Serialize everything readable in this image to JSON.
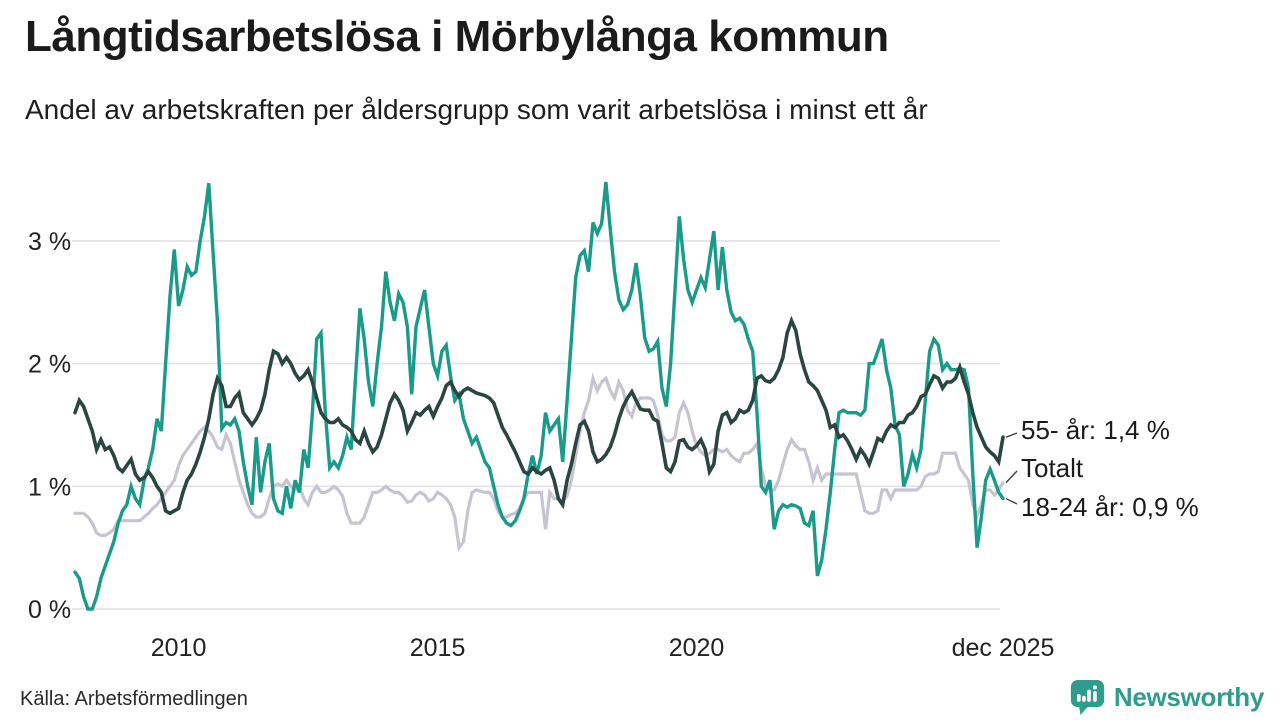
{
  "page": {
    "title": "Långtidsarbetslösa i Mörbylånga kommun",
    "subtitle": "Andel av arbetskraften per åldersgrupp som varit arbetslösa i minst ett år",
    "source": "Källa: Arbetsförmedlingen",
    "brand": "Newsworthy"
  },
  "colors": {
    "teal": "#1a9b8a",
    "dark_green": "#2b4640",
    "gray": "#c7c4d1",
    "grid": "#e2e1e7",
    "text": "#1b1b1b",
    "leader": "#3a3a3a",
    "brand_teal": "#2f9c8d"
  },
  "chart_data": {
    "type": "line",
    "title": "Långtidsarbetslösa i Mörbylånga kommun",
    "subtitle": "Andel av arbetskraften per åldersgrupp som varit arbetslösa i minst ett år",
    "unit": "% av arbetskraften",
    "x_start_year": 2008.0,
    "x_end_year": 2025.917,
    "points_per_year": 12,
    "ylim": [
      0,
      3.6
    ],
    "grid": true,
    "y_ticks": [
      {
        "label": "0 %",
        "value": 0
      },
      {
        "label": "1 %",
        "value": 1
      },
      {
        "label": "2 %",
        "value": 2
      },
      {
        "label": "3 %",
        "value": 3
      }
    ],
    "x_ticks": [
      {
        "label": "2010",
        "year": 2010.0
      },
      {
        "label": "2015",
        "year": 2015.0
      },
      {
        "label": "2020",
        "year": 2020.0
      },
      {
        "label": "dec 2025",
        "year": 2025.917
      }
    ],
    "legend_position": "right-of-line-ends",
    "series": [
      {
        "name": "Totalt",
        "end_label": "Totalt",
        "color": "#c7c4d1",
        "stroke_width": 3.2,
        "values": [
          0.78,
          0.78,
          0.78,
          0.75,
          0.7,
          0.62,
          0.6,
          0.6,
          0.62,
          0.65,
          0.72,
          0.72,
          0.72,
          0.72,
          0.72,
          0.72,
          0.75,
          0.78,
          0.82,
          0.85,
          0.9,
          0.95,
          1.0,
          1.05,
          1.17,
          1.25,
          1.3,
          1.35,
          1.4,
          1.45,
          1.48,
          1.45,
          1.4,
          1.32,
          1.3,
          1.42,
          1.35,
          1.2,
          1.05,
          0.95,
          0.85,
          0.78,
          0.75,
          0.75,
          0.78,
          0.9,
          1.0,
          1.02,
          1.0,
          1.05,
          1.0,
          0.97,
          1.0,
          0.9,
          0.85,
          0.95,
          1.0,
          0.95,
          0.95,
          0.97,
          1.0,
          0.97,
          0.92,
          0.78,
          0.7,
          0.7,
          0.7,
          0.75,
          0.85,
          0.95,
          0.95,
          0.97,
          1.0,
          0.97,
          0.95,
          0.95,
          0.92,
          0.87,
          0.88,
          0.93,
          0.95,
          0.93,
          0.88,
          0.9,
          0.95,
          0.93,
          0.9,
          0.85,
          0.75,
          0.5,
          0.55,
          0.8,
          0.95,
          0.97,
          0.96,
          0.95,
          0.95,
          0.9,
          0.8,
          0.75,
          0.75,
          0.77,
          0.78,
          0.82,
          0.9,
          0.95,
          0.95,
          0.95,
          0.95,
          0.65,
          0.95,
          0.9,
          0.9,
          0.88,
          0.92,
          1.05,
          1.25,
          1.45,
          1.6,
          1.7,
          1.88,
          1.78,
          1.85,
          1.88,
          1.78,
          1.72,
          1.85,
          1.78,
          1.62,
          1.57,
          1.68,
          1.72,
          1.72,
          1.72,
          1.7,
          1.58,
          1.42,
          1.37,
          1.37,
          1.4,
          1.6,
          1.68,
          1.6,
          1.45,
          1.33,
          1.28,
          1.25,
          1.27,
          1.3,
          1.3,
          1.28,
          1.3,
          1.25,
          1.22,
          1.2,
          1.27,
          1.27,
          1.3,
          1.35,
          1.15,
          1.0,
          0.97,
          0.97,
          1.05,
          1.18,
          1.3,
          1.38,
          1.33,
          1.3,
          1.3,
          1.2,
          1.05,
          1.15,
          1.05,
          1.1,
          1.1,
          1.1,
          1.1,
          1.1,
          1.1,
          1.1,
          1.1,
          0.95,
          0.8,
          0.78,
          0.78,
          0.8,
          0.97,
          0.97,
          0.9,
          0.97,
          0.97,
          0.97,
          0.97,
          0.97,
          0.97,
          1.0,
          1.08,
          1.1,
          1.1,
          1.12,
          1.27,
          1.27,
          1.27,
          1.27,
          1.15,
          1.1,
          1.05,
          0.85,
          0.76,
          0.85,
          0.97,
          0.97,
          0.93,
          0.97,
          1.03
        ]
      },
      {
        "name": "18-24 år",
        "end_label": "18-24 år: 0,9 %",
        "color": "#1a9b8a",
        "stroke_width": 3.4,
        "values": [
          0.3,
          0.25,
          0.1,
          0.0,
          0.0,
          0.1,
          0.25,
          0.35,
          0.45,
          0.55,
          0.7,
          0.8,
          0.85,
          1.0,
          0.9,
          0.85,
          1.05,
          1.15,
          1.3,
          1.55,
          1.45,
          2.0,
          2.55,
          2.93,
          2.47,
          2.6,
          2.79,
          2.72,
          2.75,
          3.0,
          3.2,
          3.47,
          2.9,
          2.35,
          1.47,
          1.52,
          1.5,
          1.55,
          1.45,
          1.2,
          1.0,
          0.85,
          1.4,
          0.95,
          1.2,
          1.35,
          0.9,
          0.8,
          0.78,
          1.0,
          0.82,
          1.05,
          0.95,
          1.3,
          1.15,
          1.6,
          2.2,
          2.25,
          1.6,
          1.15,
          1.2,
          1.15,
          1.25,
          1.4,
          1.3,
          1.9,
          2.45,
          2.2,
          1.85,
          1.65,
          2.0,
          2.3,
          2.75,
          2.5,
          2.35,
          2.57,
          2.5,
          2.3,
          1.75,
          2.3,
          2.45,
          2.6,
          2.3,
          2.0,
          1.9,
          2.1,
          2.15,
          1.9,
          1.7,
          1.75,
          1.55,
          1.45,
          1.35,
          1.4,
          1.3,
          1.2,
          1.15,
          1.0,
          0.85,
          0.75,
          0.7,
          0.68,
          0.72,
          0.8,
          0.9,
          1.1,
          1.25,
          1.1,
          1.25,
          1.6,
          1.45,
          1.5,
          1.55,
          1.2,
          1.7,
          2.2,
          2.7,
          2.88,
          2.92,
          2.75,
          3.15,
          3.06,
          3.14,
          3.48,
          3.1,
          2.75,
          2.52,
          2.44,
          2.48,
          2.6,
          2.82,
          2.55,
          2.21,
          2.1,
          2.12,
          2.18,
          1.8,
          1.65,
          2.0,
          2.6,
          3.2,
          2.85,
          2.6,
          2.5,
          2.6,
          2.7,
          2.62,
          2.85,
          3.08,
          2.6,
          2.95,
          2.6,
          2.42,
          2.35,
          2.37,
          2.32,
          2.2,
          2.1,
          1.6,
          1.0,
          0.95,
          1.05,
          0.65,
          0.8,
          0.85,
          0.83,
          0.85,
          0.84,
          0.82,
          0.7,
          0.68,
          0.8,
          0.27,
          0.4,
          0.65,
          0.95,
          1.3,
          1.6,
          1.62,
          1.6,
          1.6,
          1.6,
          1.58,
          1.62,
          2.0,
          2.0,
          2.1,
          2.2,
          1.95,
          1.8,
          1.5,
          1.42,
          1.0,
          1.1,
          1.26,
          1.15,
          1.3,
          1.7,
          2.1,
          2.2,
          2.15,
          1.95,
          2.0,
          1.95,
          1.95,
          1.96,
          1.95,
          1.8,
          1.1,
          0.5,
          0.75,
          1.05,
          1.14,
          1.05,
          0.95,
          0.9
        ]
      },
      {
        "name": "55- år",
        "end_label": "55- år: 1,4 %",
        "color": "#2b4640",
        "stroke_width": 3.6,
        "values": [
          1.6,
          1.7,
          1.65,
          1.55,
          1.45,
          1.3,
          1.38,
          1.3,
          1.32,
          1.25,
          1.15,
          1.12,
          1.17,
          1.22,
          1.1,
          1.05,
          1.07,
          1.12,
          1.07,
          1.0,
          0.95,
          0.8,
          0.78,
          0.8,
          0.82,
          0.95,
          1.05,
          1.1,
          1.18,
          1.28,
          1.4,
          1.55,
          1.75,
          1.88,
          1.82,
          1.65,
          1.65,
          1.72,
          1.76,
          1.6,
          1.55,
          1.5,
          1.55,
          1.62,
          1.75,
          1.95,
          2.1,
          2.08,
          2.0,
          2.05,
          2.0,
          1.92,
          1.87,
          1.9,
          1.95,
          1.85,
          1.72,
          1.6,
          1.55,
          1.52,
          1.52,
          1.55,
          1.5,
          1.48,
          1.45,
          1.38,
          1.35,
          1.45,
          1.35,
          1.28,
          1.32,
          1.42,
          1.55,
          1.68,
          1.75,
          1.7,
          1.62,
          1.45,
          1.52,
          1.6,
          1.58,
          1.62,
          1.65,
          1.57,
          1.65,
          1.72,
          1.82,
          1.85,
          1.78,
          1.73,
          1.78,
          1.8,
          1.78,
          1.76,
          1.75,
          1.74,
          1.72,
          1.68,
          1.58,
          1.48,
          1.42,
          1.35,
          1.28,
          1.2,
          1.12,
          1.1,
          1.15,
          1.12,
          1.1,
          1.13,
          1.15,
          1.05,
          0.9,
          0.85,
          1.05,
          1.18,
          1.35,
          1.5,
          1.53,
          1.45,
          1.28,
          1.2,
          1.22,
          1.26,
          1.32,
          1.42,
          1.55,
          1.65,
          1.72,
          1.77,
          1.7,
          1.63,
          1.62,
          1.62,
          1.55,
          1.53,
          1.35,
          1.15,
          1.12,
          1.2,
          1.37,
          1.38,
          1.32,
          1.3,
          1.33,
          1.38,
          1.3,
          1.12,
          1.18,
          1.45,
          1.58,
          1.6,
          1.52,
          1.55,
          1.62,
          1.6,
          1.62,
          1.7,
          1.88,
          1.9,
          1.86,
          1.85,
          1.88,
          1.95,
          2.05,
          2.25,
          2.35,
          2.27,
          2.08,
          1.95,
          1.85,
          1.82,
          1.78,
          1.7,
          1.62,
          1.48,
          1.5,
          1.4,
          1.42,
          1.37,
          1.3,
          1.22,
          1.3,
          1.25,
          1.18,
          1.28,
          1.39,
          1.37,
          1.45,
          1.5,
          1.48,
          1.52,
          1.52,
          1.58,
          1.6,
          1.65,
          1.73,
          1.75,
          1.83,
          1.9,
          1.88,
          1.8,
          1.85,
          1.85,
          1.88,
          1.97,
          1.85,
          1.75,
          1.6,
          1.48,
          1.4,
          1.32,
          1.28,
          1.25,
          1.2,
          1.4
        ]
      }
    ]
  }
}
